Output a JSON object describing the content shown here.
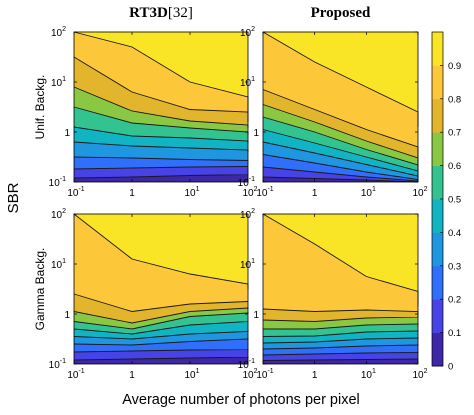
{
  "chart_data": {
    "type": "heatmap",
    "subtype": "filled-contour",
    "columns": [
      {
        "title_main": "RT3D",
        "title_ref": "[32]"
      },
      {
        "title_main": "Proposed",
        "title_ref": ""
      }
    ],
    "rows": [
      {
        "label": "Unif. Backg."
      },
      {
        "label": "Gamma Backg."
      }
    ],
    "xlabel": "Average number of photons per pixel",
    "ylabel": "SBR",
    "x_scale": "log",
    "y_scale": "log",
    "x_range": [
      0.1,
      100
    ],
    "y_range": [
      0.1,
      100
    ],
    "x_ticks": [
      {
        "base": "10",
        "exp": "-1"
      },
      {
        "base": "1",
        "exp": ""
      },
      {
        "base": "10",
        "exp": "1"
      },
      {
        "base": "10",
        "exp": "2"
      }
    ],
    "y_ticks": [
      {
        "base": "10",
        "exp": "2"
      },
      {
        "base": "10",
        "exp": "1"
      },
      {
        "base": "1",
        "exp": ""
      },
      {
        "base": "10",
        "exp": "-1"
      }
    ],
    "contour_levels": [
      0.1,
      0.2,
      0.3,
      0.4,
      0.5,
      0.6,
      0.7,
      0.8,
      0.9
    ],
    "colorbar": {
      "min": 0,
      "max": 1,
      "ticks": [
        "0.9",
        "0.8",
        "0.7",
        "0.6",
        "0.5",
        "0.4",
        "0.3",
        "0.2",
        "0.1",
        "0"
      ],
      "colormap": [
        "#3e26a8",
        "#4743e6",
        "#2f6ffa",
        "#1e96e0",
        "#11b4c2",
        "#33c390",
        "#8ac844",
        "#e2b52c",
        "#fcc83a",
        "#f9e425"
      ]
    },
    "panels": [
      {
        "row": "Unif. Backg.",
        "column": "RT3D",
        "boundaries_log10_sbr_by_level": [
          [
            -0.92,
            -0.9,
            -0.87,
            -0.85,
            -0.84
          ],
          [
            -0.74,
            -0.72,
            -0.7,
            -0.69,
            -0.69
          ],
          [
            -0.5,
            -0.52,
            -0.55,
            -0.57,
            -0.58
          ],
          [
            -0.2,
            -0.28,
            -0.32,
            -0.36,
            -0.4
          ],
          [
            0.1,
            -0.08,
            -0.12,
            -0.18,
            -0.22
          ],
          [
            0.5,
            0.18,
            0.08,
            0.0,
            -0.05
          ],
          [
            0.9,
            0.42,
            0.22,
            0.14,
            0.08
          ],
          [
            1.5,
            0.8,
            0.45,
            0.4,
            0.2
          ],
          [
            2.0,
            1.7,
            1.0,
            0.7,
            0.4
          ]
        ]
      },
      {
        "row": "Unif. Backg.",
        "column": "Proposed",
        "boundaries_log10_sbr_by_level": [
          [
            -0.9,
            -0.93,
            -0.96,
            -1.0,
            -1.0
          ],
          [
            -0.7,
            -0.8,
            -0.9,
            -0.98,
            -1.0
          ],
          [
            -0.45,
            -0.62,
            -0.8,
            -0.95,
            -1.0
          ],
          [
            -0.2,
            -0.42,
            -0.65,
            -0.88,
            -1.0
          ],
          [
            0.05,
            -0.22,
            -0.5,
            -0.78,
            -1.0
          ],
          [
            0.3,
            0.0,
            -0.35,
            -0.66,
            -1.0
          ],
          [
            0.55,
            0.2,
            -0.18,
            -0.52,
            -0.95
          ],
          [
            0.85,
            0.45,
            0.05,
            -0.3,
            -0.7
          ],
          [
            2.0,
            1.4,
            0.9,
            0.4,
            0.1
          ]
        ]
      },
      {
        "row": "Gamma Backg.",
        "column": "RT3D",
        "boundaries_log10_sbr_by_level": [
          [
            -0.92,
            -0.9,
            -0.88,
            -0.86,
            -0.85
          ],
          [
            -0.76,
            -0.74,
            -0.72,
            -0.71,
            -0.7
          ],
          [
            -0.6,
            -0.62,
            -0.55,
            -0.5,
            -0.48
          ],
          [
            -0.45,
            -0.5,
            -0.4,
            -0.35,
            -0.32
          ],
          [
            -0.3,
            -0.4,
            -0.22,
            -0.15,
            -0.14
          ],
          [
            -0.15,
            -0.3,
            -0.05,
            0.02,
            0.0
          ],
          [
            0.05,
            -0.18,
            0.05,
            0.12,
            0.1
          ],
          [
            0.4,
            0.05,
            0.2,
            0.25,
            0.25
          ],
          [
            2.0,
            1.1,
            0.8,
            0.6,
            0.5
          ]
        ]
      },
      {
        "row": "Gamma Backg.",
        "column": "Proposed",
        "boundaries_log10_sbr_by_level": [
          [
            -0.93,
            -0.92,
            -0.91,
            -0.9,
            -0.9
          ],
          [
            -0.82,
            -0.8,
            -0.78,
            -0.77,
            -0.76
          ],
          [
            -0.7,
            -0.68,
            -0.64,
            -0.62,
            -0.6
          ],
          [
            -0.58,
            -0.56,
            -0.5,
            -0.48,
            -0.46
          ],
          [
            -0.45,
            -0.44,
            -0.36,
            -0.34,
            -0.32
          ],
          [
            -0.3,
            -0.3,
            -0.22,
            -0.2,
            -0.18
          ],
          [
            -0.12,
            -0.15,
            -0.08,
            -0.06,
            -0.05
          ],
          [
            0.1,
            0.05,
            0.08,
            0.05,
            -0.05
          ],
          [
            2.0,
            1.4,
            0.75,
            0.45,
            0.15
          ]
        ]
      }
    ]
  }
}
